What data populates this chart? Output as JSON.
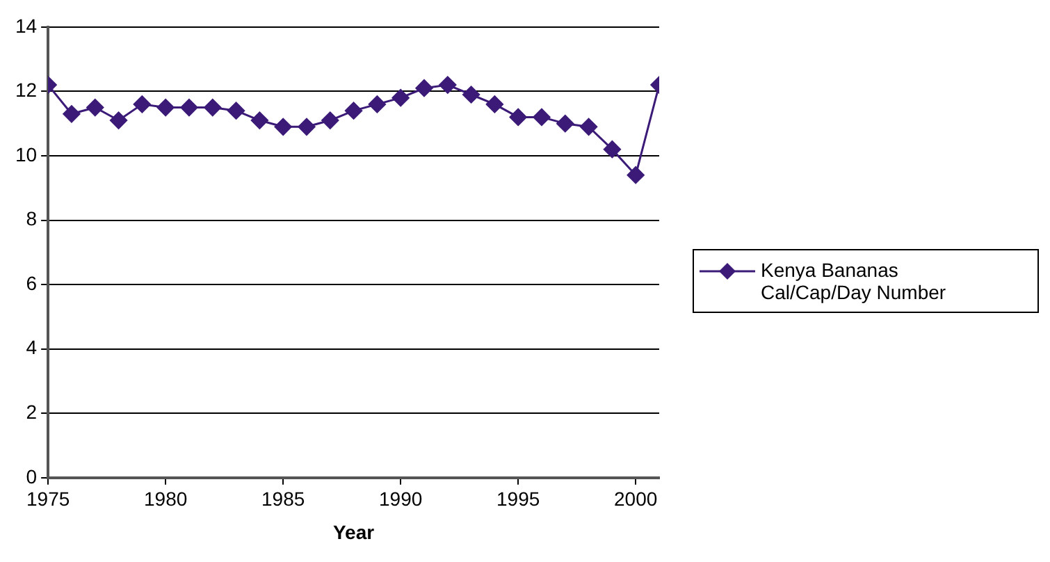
{
  "chart_data": {
    "type": "line",
    "xlabel": "Year",
    "x": [
      1975,
      1976,
      1977,
      1978,
      1979,
      1980,
      1981,
      1982,
      1983,
      1984,
      1985,
      1986,
      1987,
      1988,
      1989,
      1990,
      1991,
      1992,
      1993,
      1994,
      1995,
      1996,
      1997,
      1998,
      1999,
      2000,
      2001
    ],
    "series": [
      {
        "name": "Kenya Bananas Cal/Cap/Day Number",
        "color": "#3b1a78",
        "values": [
          12.2,
          11.3,
          11.5,
          11.1,
          11.6,
          11.5,
          11.5,
          11.5,
          11.4,
          11.1,
          10.9,
          10.9,
          11.1,
          11.4,
          11.6,
          11.8,
          12.1,
          12.2,
          11.9,
          11.6,
          11.2,
          11.2,
          11.0,
          10.9,
          10.2,
          9.4,
          12.2
        ]
      }
    ],
    "xlim": [
      1975,
      2001
    ],
    "xticks": [
      1975,
      1980,
      1985,
      1990,
      1995,
      2000
    ],
    "ylim": [
      0,
      14
    ],
    "yticks": [
      0,
      2,
      4,
      6,
      8,
      10,
      12,
      14
    ],
    "grid": "y",
    "legend": "right",
    "marker": "diamond",
    "line_style": "solid"
  }
}
